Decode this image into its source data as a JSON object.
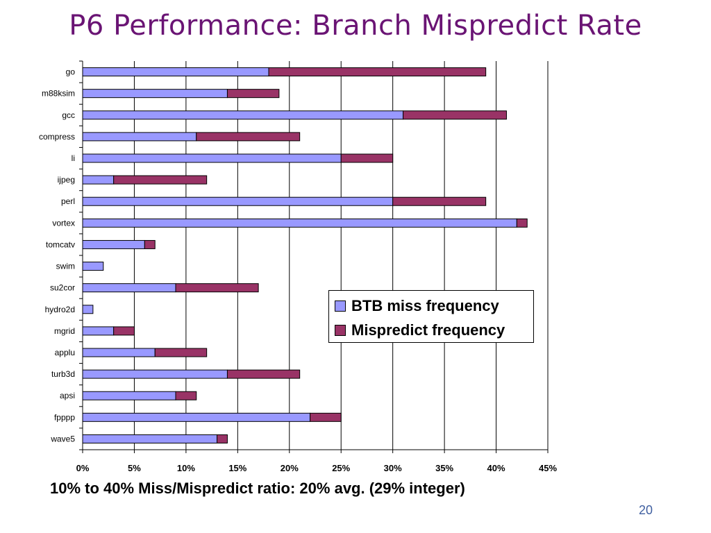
{
  "slide": {
    "title": "P6 Performance: Branch Mispredict Rate",
    "footnote": "10% to 40% Miss/Mispredict ratio: 20% avg. (29% integer)",
    "page_number": "20"
  },
  "colors": {
    "title": "#6a1474",
    "series_btb": "#9999ff",
    "series_mispredict": "#993366",
    "page_number": "#3f5fa0"
  },
  "chart_data": {
    "type": "bar",
    "orientation": "horizontal",
    "stacked": true,
    "title": "",
    "xlabel": "",
    "ylabel": "",
    "xlim": [
      0,
      45
    ],
    "x_ticks": [
      0,
      5,
      10,
      15,
      20,
      25,
      30,
      35,
      40,
      45
    ],
    "x_tick_labels": [
      "0%",
      "5%",
      "10%",
      "15%",
      "20%",
      "25%",
      "30%",
      "35%",
      "40%",
      "45%"
    ],
    "grid": "vertical",
    "legend_position": "center-right",
    "categories": [
      "go",
      "m88ksim",
      "gcc",
      "compress",
      "li",
      "ijpeg",
      "perl",
      "vortex",
      "tomcatv",
      "swim",
      "su2cor",
      "hydro2d",
      "mgrid",
      "applu",
      "turb3d",
      "apsi",
      "fpppp",
      "wave5"
    ],
    "series": [
      {
        "name": "BTB miss frequency",
        "values": [
          18,
          14,
          31,
          11,
          25,
          3,
          30,
          42,
          6,
          2,
          9,
          1,
          3,
          7,
          14,
          9,
          22,
          13
        ]
      },
      {
        "name": "Mispredict frequency",
        "values": [
          21,
          5,
          10,
          10,
          5,
          9,
          9,
          1,
          1,
          0,
          8,
          0,
          2,
          5,
          7,
          2,
          3,
          1
        ]
      }
    ]
  }
}
